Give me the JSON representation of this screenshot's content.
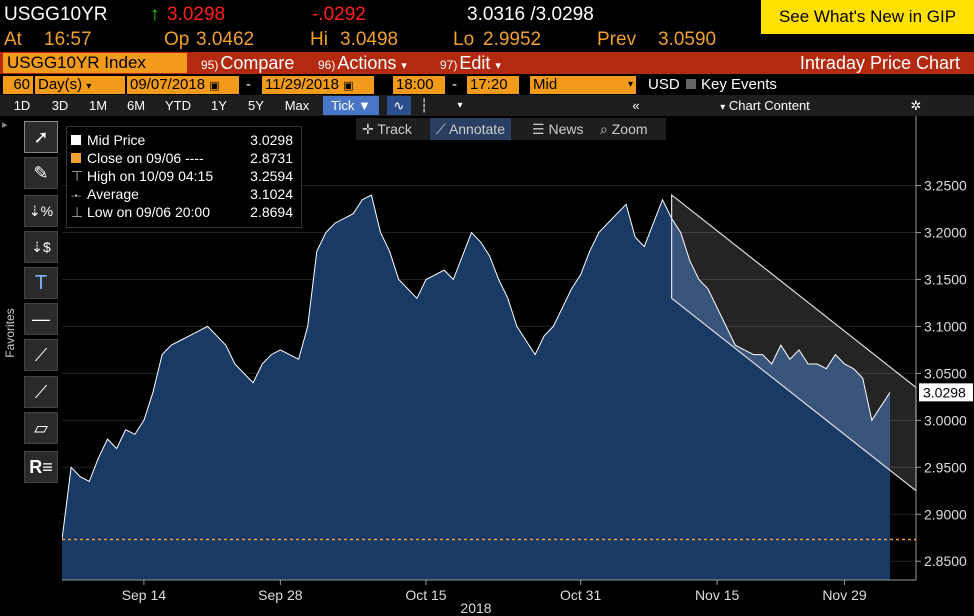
{
  "quote": {
    "ticker": "USGG10YR",
    "last": "3.0298",
    "change": "-.0292",
    "bid_ask": "3.0316 /3.0298",
    "at_label": "At",
    "time": "16:57",
    "open_label": "Op",
    "open": "3.0462",
    "high_label": "Hi",
    "high": "3.0498",
    "low_label": "Lo",
    "low": "2.9952",
    "prev_label": "Prev",
    "prev": "3.0590",
    "whats_new": "See What's New in GIP"
  },
  "menu": {
    "security": "USGG10YR Index",
    "compare_num": "95)",
    "compare": "Compare",
    "actions_num": "96)",
    "actions": "Actions",
    "edit_num": "97)",
    "edit": "Edit",
    "title": "Intraday Price Chart"
  },
  "daterow": {
    "period_num": "60",
    "period_unit": "Day(s)",
    "start_date": "09/07/2018",
    "end_date": "11/29/2018",
    "dash": "-",
    "start_time": "18:00",
    "end_time": "17:20",
    "price_type": "Mid",
    "currency": "USD",
    "key_events": "Key Events"
  },
  "ranges": [
    "1D",
    "3D",
    "1M",
    "6M",
    "YTD",
    "1Y",
    "5Y",
    "Max"
  ],
  "tick_label": "Tick ▼",
  "chart_content": "Chart Content",
  "toolbar": {
    "track": "Track",
    "annotate": "Annotate",
    "news": "News",
    "zoom": "Zoom"
  },
  "sidebar_label": "Favorites",
  "legend": {
    "mid_label": "Mid Price",
    "mid_value": "3.0298",
    "close_label": "Close on 09/06 ----",
    "close_value": "2.8731",
    "high_label": "High on 10/09 04:15",
    "high_value": "3.2594",
    "avg_label": "Average",
    "avg_value": "3.1024",
    "low_label": "Low on 09/06 20:00",
    "low_value": "2.8694"
  },
  "colors": {
    "amber": "#f0a030",
    "orange_box": "#f29a1a",
    "menu_bar": "#b32a10",
    "whats_new_bg": "#ffe100",
    "area_fill": "#1a3a66",
    "close_line": "#f0a030"
  },
  "chart_data": {
    "type": "area",
    "title": "",
    "xlabel": "2018",
    "ylabel": "",
    "ylim": [
      2.83,
      3.29
    ],
    "y_ticks": [
      "3.2500",
      "3.2000",
      "3.1500",
      "3.1000",
      "3.0500",
      "3.0000",
      "2.9500",
      "2.9000",
      "2.8500"
    ],
    "x_ticks": [
      "Sep 14",
      "Sep 28",
      "Oct 15",
      "Oct 31",
      "Nov 15",
      "Nov 29"
    ],
    "last_value_label": "3.0298",
    "reference_line": {
      "name": "Close on 09/06",
      "value": 2.8731
    },
    "series": [
      {
        "values": [
          2.873,
          2.95,
          2.94,
          2.935,
          2.96,
          2.98,
          2.97,
          2.99,
          2.985,
          3.0,
          3.03,
          3.07,
          3.08,
          3.085,
          3.09,
          3.095,
          3.1,
          3.09,
          3.08,
          3.06,
          3.05,
          3.04,
          3.06,
          3.07,
          3.075,
          3.07,
          3.065,
          3.1,
          3.18,
          3.2,
          3.21,
          3.215,
          3.22,
          3.235,
          3.24,
          3.2,
          3.18,
          3.15,
          3.14,
          3.13,
          3.15,
          3.155,
          3.16,
          3.15,
          3.175,
          3.2,
          3.19,
          3.175,
          3.15,
          3.13,
          3.1,
          3.085,
          3.07,
          3.09,
          3.1,
          3.12,
          3.14,
          3.155,
          3.18,
          3.2,
          3.21,
          3.22,
          3.23,
          3.195,
          3.185,
          3.21,
          3.235,
          3.215,
          3.2,
          3.17,
          3.15,
          3.14,
          3.12,
          3.1,
          3.08,
          3.075,
          3.07,
          3.07,
          3.06,
          3.08,
          3.065,
          3.075,
          3.06,
          3.06,
          3.055,
          3.07,
          3.06,
          3.055,
          3.045,
          3.0,
          3.015,
          3.0298
        ]
      }
    ],
    "x_range_labels": {
      "start": "09/07/2018",
      "end": "11/29/2018"
    }
  }
}
